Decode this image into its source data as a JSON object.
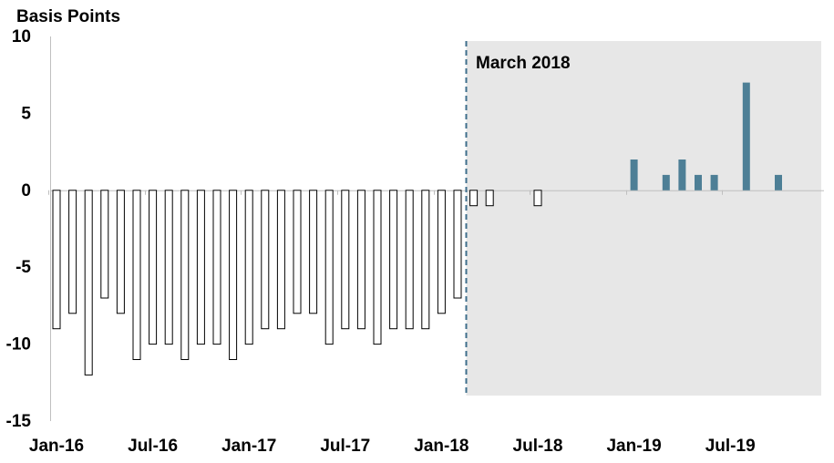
{
  "chart_data": {
    "type": "bar",
    "unit_label": "Basis Points",
    "annotation": "March 2018",
    "highlight_start_index": 26,
    "ylim": [
      -15,
      10
    ],
    "y_ticks": [
      "10",
      "5",
      "0",
      "-5",
      "-10",
      "-15"
    ],
    "y_tick_values": [
      10,
      5,
      0,
      -5,
      -10,
      -15
    ],
    "x_tick_labels": [
      {
        "label": "Jan-16",
        "index": 0
      },
      {
        "label": "Jul-16",
        "index": 6
      },
      {
        "label": "Jan-17",
        "index": 12
      },
      {
        "label": "Jul-17",
        "index": 18
      },
      {
        "label": "Jan-18",
        "index": 24
      },
      {
        "label": "Jul-18",
        "index": 30
      },
      {
        "label": "Jan-19",
        "index": 36
      },
      {
        "label": "Jul-19",
        "index": 42
      }
    ],
    "values": [
      -9,
      -8,
      -12,
      -7,
      -8,
      -11,
      -10,
      -10,
      -11,
      -10,
      -10,
      -11,
      -10,
      -9,
      -9,
      -8,
      -8,
      -10,
      -9,
      -9,
      -10,
      -9,
      -9,
      -9,
      -8,
      -7,
      -1,
      -1,
      0,
      0,
      -1,
      0,
      0,
      0,
      0,
      0,
      2,
      0,
      1,
      2,
      1,
      1,
      0,
      7,
      0,
      1
    ],
    "grid": false,
    "colors": {
      "pre_bar_fill": "#ffffff",
      "pre_bar_stroke": "#000000",
      "post_bar_fill": "#4d7f96",
      "post_bar_stroke": "#000000",
      "shade": "#e7e7e7",
      "divider": "#3f6f8c",
      "axis": "#bfbfbf"
    }
  }
}
